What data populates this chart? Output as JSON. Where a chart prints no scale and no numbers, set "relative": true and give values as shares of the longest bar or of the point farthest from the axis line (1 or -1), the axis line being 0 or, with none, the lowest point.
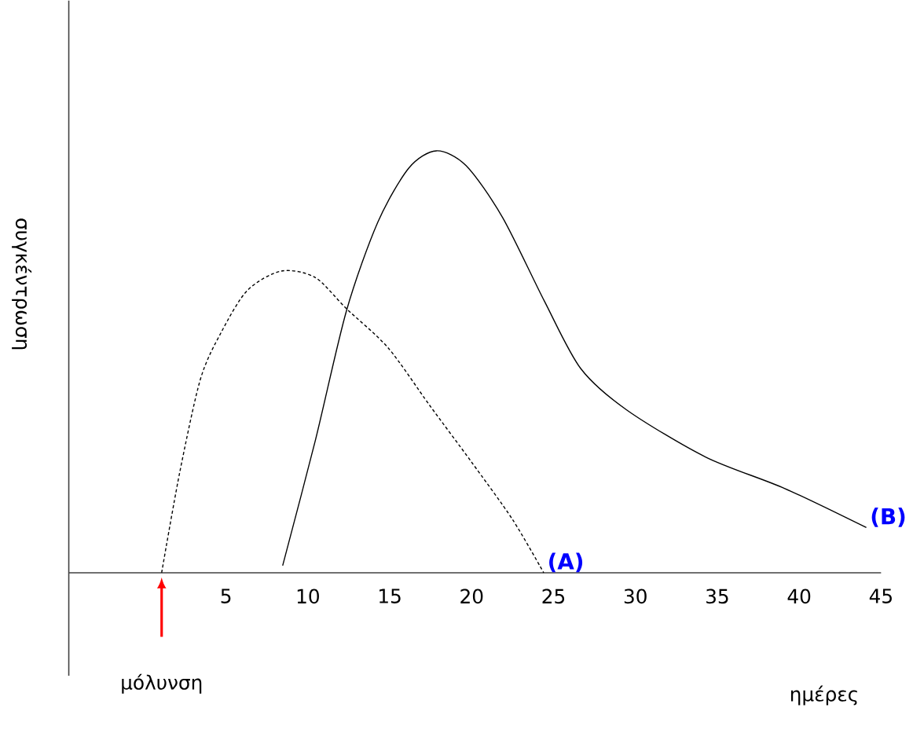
{
  "chart_data": {
    "type": "line",
    "relative": true,
    "xlabel": "ημέρες",
    "ylabel": "συγκέντρωση",
    "xlim": [
      -4.6,
      45
    ],
    "xticks": [
      5,
      10,
      15,
      20,
      25,
      30,
      35,
      40,
      45
    ],
    "grid": false,
    "legend": false,
    "marker": "none",
    "series": [
      {
        "name": "(A)",
        "color": "#000000",
        "line_style": "dashed",
        "x": [
          1.07,
          2.17,
          3.44,
          4.71,
          6.3,
          8.37,
          10.44,
          12.35,
          14.9,
          17.43,
          19.98,
          22.5,
          24.4
        ],
        "values": [
          0,
          0.237,
          0.459,
          0.57,
          0.669,
          0.715,
          0.7,
          0.626,
          0.533,
          0.397,
          0.263,
          0.126,
          0
        ]
      },
      {
        "name": "(B)",
        "color": "#000000",
        "line_style": "solid",
        "x": [
          8.46,
          10.44,
          12.35,
          14.26,
          16.16,
          17.85,
          19.66,
          21.89,
          24.44,
          26.66,
          29.5,
          34.3,
          39.1,
          44.1
        ],
        "values": [
          0.017,
          0.311,
          0.62,
          0.83,
          0.959,
          1,
          0.965,
          0.842,
          0.644,
          0.484,
          0.385,
          0.274,
          0.2,
          0.107
        ]
      }
    ],
    "annotations": [
      "μόλυνση"
    ]
  }
}
